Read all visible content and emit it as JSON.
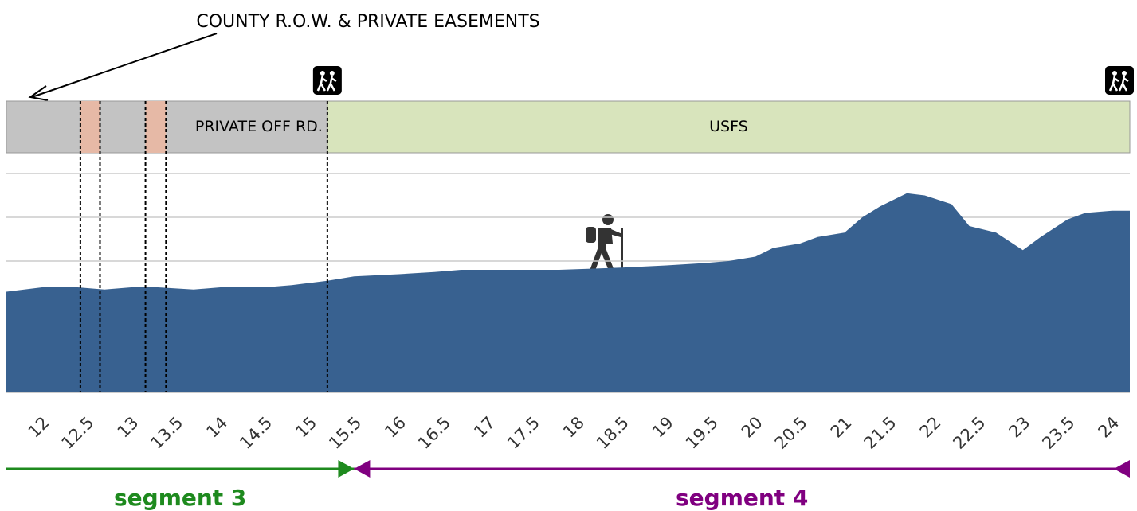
{
  "chart_data": {
    "type": "area",
    "annotation": "COUNTY R.O.W. & PRIVATE EASEMENTS",
    "color": "#386190",
    "x": [
      11.6,
      12.0,
      12.4,
      12.7,
      13.0,
      13.3,
      13.7,
      14.0,
      14.5,
      14.8,
      15.0,
      15.2,
      15.5,
      16.0,
      16.4,
      16.7,
      17.2,
      17.8,
      18.5,
      19.0,
      19.4,
      19.7,
      20.0,
      20.2,
      20.5,
      20.7,
      21.0,
      21.2,
      21.4,
      21.7,
      21.9,
      22.2,
      22.4,
      22.7,
      23.0,
      23.2,
      23.5,
      23.7,
      24.0,
      24.2
    ],
    "values": [
      2.3,
      2.4,
      2.4,
      2.35,
      2.4,
      2.4,
      2.35,
      2.4,
      2.4,
      2.45,
      2.5,
      2.55,
      2.65,
      2.7,
      2.75,
      2.8,
      2.8,
      2.8,
      2.85,
      2.9,
      2.95,
      3.0,
      3.1,
      3.3,
      3.4,
      3.55,
      3.65,
      4.0,
      4.25,
      4.55,
      4.5,
      4.3,
      3.8,
      3.65,
      3.25,
      3.55,
      3.95,
      4.1,
      4.15,
      4.15
    ],
    "xlim": [
      11.6,
      24.2
    ],
    "xticks": [
      12,
      12.5,
      13,
      13.5,
      14,
      14.5,
      15,
      15.5,
      16,
      16.5,
      17,
      17.5,
      18,
      18.5,
      19,
      19.5,
      20,
      20.5,
      21,
      21.5,
      22,
      22.5,
      23,
      23.5,
      24
    ],
    "ylim": [
      0,
      5
    ],
    "grid_lines": [
      3,
      4,
      5
    ],
    "bands": [
      {
        "start": 11.6,
        "end": 15.2,
        "color": "#c3c3c3",
        "label": "PRIVATE OFF RD."
      },
      {
        "start": 15.2,
        "end": 24.2,
        "color": "#d8e4bc",
        "label": "USFS"
      },
      {
        "start": 12.43,
        "end": 12.65,
        "color": "#e6b9a6"
      },
      {
        "start": 13.16,
        "end": 13.39,
        "color": "#e6b9a6"
      }
    ],
    "trailheads": [
      15.2,
      24.2
    ],
    "segments": [
      {
        "name": "segment 3",
        "color": "#1e8a1e",
        "start": 11.6,
        "end": 15.5
      },
      {
        "name": "segment 4",
        "color": "#800080",
        "start": 15.5,
        "end": 24.2
      }
    ]
  }
}
